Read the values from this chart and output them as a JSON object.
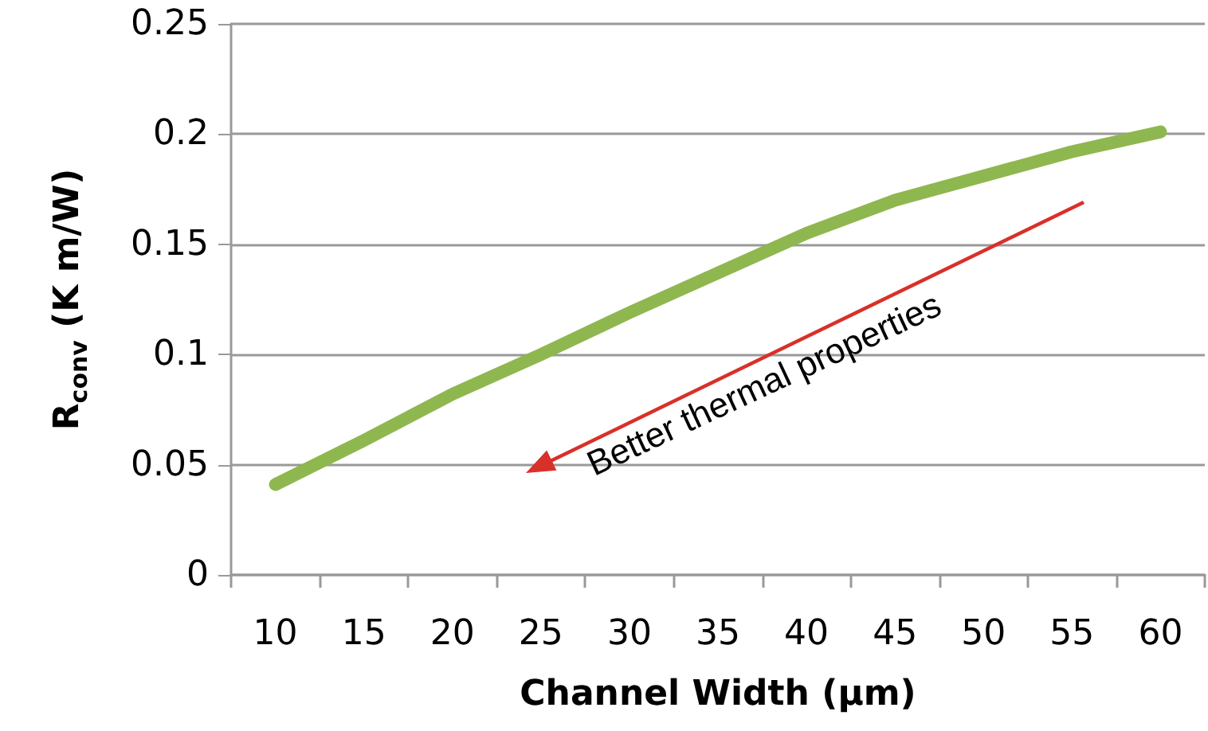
{
  "chart_data": {
    "type": "line",
    "xlabel": "Channel Width (µm)",
    "ylabel": "R$_{conv}$ (K m/W)",
    "categories": [
      "10",
      "15",
      "20",
      "25",
      "30",
      "35",
      "40",
      "45",
      "50",
      "55",
      "60"
    ],
    "series": [
      {
        "color": "#8fb74f",
        "values": [
          0.041,
          0.061,
          0.082,
          0.1,
          0.119,
          0.137,
          0.155,
          0.17,
          0.181,
          0.192,
          0.201
        ]
      }
    ],
    "ylim": [
      0,
      0.25
    ],
    "yticks": [
      0,
      0.05,
      0.1,
      0.15,
      0.2,
      0.25
    ],
    "grid": "y",
    "line_style": "solid",
    "annotations": [
      "Better thermal properties"
    ]
  }
}
